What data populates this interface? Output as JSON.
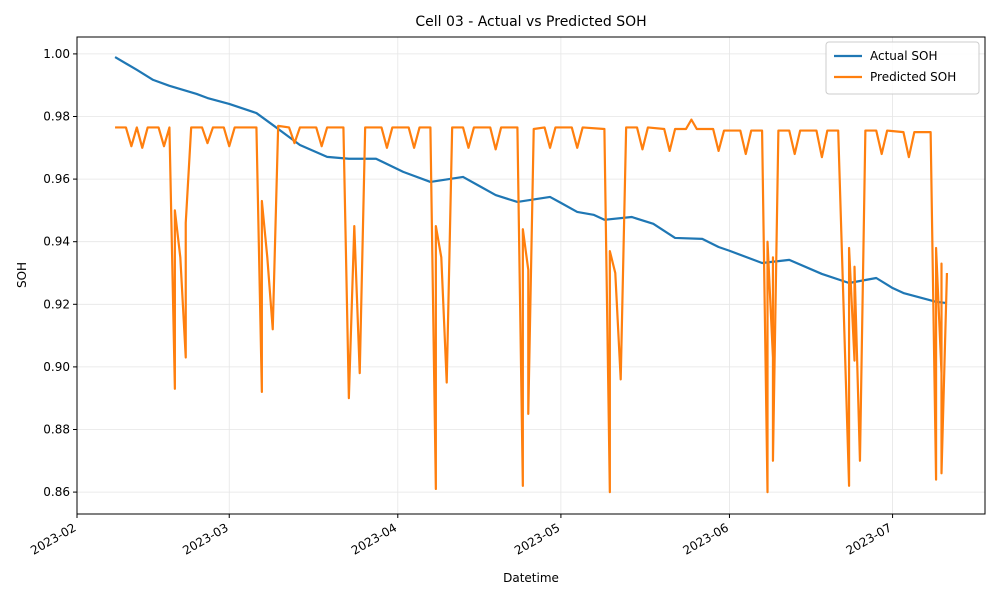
{
  "chart_data": {
    "type": "line",
    "title": "Cell 03 - Actual vs Predicted SOH",
    "xlabel": "Datetime",
    "ylabel": "SOH",
    "xlim": [
      "2023-02-01",
      "2023-07-18"
    ],
    "xticks": [
      {
        "value": "2023-02-01",
        "label": "2023-02"
      },
      {
        "value": "2023-03-01",
        "label": "2023-03"
      },
      {
        "value": "2023-04-01",
        "label": "2023-04"
      },
      {
        "value": "2023-05-01",
        "label": "2023-05"
      },
      {
        "value": "2023-06-01",
        "label": "2023-06"
      },
      {
        "value": "2023-07-01",
        "label": "2023-07"
      }
    ],
    "ylim": [
      0.853,
      1.0054
    ],
    "yticks": [
      0.86,
      0.88,
      {
        "value": 0.9,
        "label": "0.90"
      },
      0.92,
      0.94,
      0.96,
      0.98,
      {
        "value": 1,
        "label": "1.00"
      }
    ],
    "grid": true,
    "legend": "upper right",
    "series": [
      {
        "name": "Actual SOH",
        "color": "#1f77b4",
        "x": [
          "2023-02-08",
          "2023-02-12",
          "2023-02-15",
          "2023-02-18",
          "2023-02-23",
          "2023-02-25",
          "2023-03-01",
          "2023-03-06",
          "2023-03-09",
          "2023-03-14",
          "2023-03-19",
          "2023-03-23",
          "2023-03-28",
          "2023-04-02",
          "2023-04-07",
          "2023-04-13",
          "2023-04-16",
          "2023-04-19",
          "2023-04-23",
          "2023-04-29",
          "2023-05-01",
          "2023-05-04",
          "2023-05-07",
          "2023-05-09",
          "2023-05-14",
          "2023-05-18",
          "2023-05-22",
          "2023-05-27",
          "2023-05-30",
          "2023-06-01",
          "2023-06-07",
          "2023-06-12",
          "2023-06-18",
          "2023-06-23",
          "2023-06-28",
          "2023-07-01",
          "2023-07-03",
          "2023-07-09",
          "2023-07-11"
        ],
        "values": [
          0.999,
          0.9949,
          0.9917,
          0.9898,
          0.9872,
          0.9859,
          0.984,
          0.9811,
          0.9773,
          0.9709,
          0.9671,
          0.9665,
          0.9665,
          0.9623,
          0.9591,
          0.9607,
          0.9578,
          0.9549,
          0.9527,
          0.9543,
          0.9524,
          0.9495,
          0.9486,
          0.947,
          0.9479,
          0.9457,
          0.9412,
          0.9409,
          0.9383,
          0.9371,
          0.9332,
          0.9342,
          0.9297,
          0.9268,
          0.9284,
          0.9252,
          0.9236,
          0.9208,
          0.9204
        ]
      },
      {
        "name": "Predicted SOH",
        "color": "#ff7f0e",
        "x": [
          "2023-02-08",
          "2023-02-10",
          "2023-02-11",
          "2023-02-12",
          "2023-02-13",
          "2023-02-14",
          "2023-02-16",
          "2023-02-17",
          "2023-02-18",
          "2023-02-19",
          "2023-02-19",
          "2023-02-20",
          "2023-02-21",
          "2023-02-21",
          "2023-02-22",
          "2023-02-24",
          "2023-02-25",
          "2023-02-26",
          "2023-02-28",
          "2023-03-01",
          "2023-03-02",
          "2023-03-04",
          "2023-03-06",
          "2023-03-07",
          "2023-03-07",
          "2023-03-08",
          "2023-03-09",
          "2023-03-10",
          "2023-03-12",
          "2023-03-13",
          "2023-03-14",
          "2023-03-17",
          "2023-03-18",
          "2023-03-19",
          "2023-03-22",
          "2023-03-23",
          "2023-03-24",
          "2023-03-25",
          "2023-03-26",
          "2023-03-29",
          "2023-03-30",
          "2023-03-31",
          "2023-04-03",
          "2023-04-04",
          "2023-04-05",
          "2023-04-07",
          "2023-04-08",
          "2023-04-08",
          "2023-04-09",
          "2023-04-10",
          "2023-04-11",
          "2023-04-13",
          "2023-04-14",
          "2023-04-15",
          "2023-04-18",
          "2023-04-19",
          "2023-04-20",
          "2023-04-23",
          "2023-04-24",
          "2023-04-24",
          "2023-04-25",
          "2023-04-25",
          "2023-04-26",
          "2023-04-28",
          "2023-04-29",
          "2023-04-30",
          "2023-05-03",
          "2023-05-04",
          "2023-05-05",
          "2023-05-09",
          "2023-05-10",
          "2023-05-10",
          "2023-05-11",
          "2023-05-12",
          "2023-05-13",
          "2023-05-15",
          "2023-05-16",
          "2023-05-17",
          "2023-05-20",
          "2023-05-21",
          "2023-05-22",
          "2023-05-24",
          "2023-05-25",
          "2023-05-26",
          "2023-05-29",
          "2023-05-30",
          "2023-05-31",
          "2023-06-03",
          "2023-06-04",
          "2023-06-05",
          "2023-06-07",
          "2023-06-08",
          "2023-06-08",
          "2023-06-09",
          "2023-06-09",
          "2023-06-09",
          "2023-06-10",
          "2023-06-12",
          "2023-06-13",
          "2023-06-14",
          "2023-06-17",
          "2023-06-18",
          "2023-06-19",
          "2023-06-21",
          "2023-06-23",
          "2023-06-23",
          "2023-06-24",
          "2023-06-24",
          "2023-06-25",
          "2023-06-26",
          "2023-06-28",
          "2023-06-29",
          "2023-06-30",
          "2023-07-03",
          "2023-07-04",
          "2023-07-05",
          "2023-07-08",
          "2023-07-09",
          "2023-07-09",
          "2023-07-10",
          "2023-07-10",
          "2023-07-10",
          "2023-07-11"
        ],
        "values": [
          0.9765,
          0.9765,
          0.9705,
          0.9765,
          0.97,
          0.9765,
          0.9765,
          0.9705,
          0.9765,
          0.893,
          0.95,
          0.935,
          0.903,
          0.946,
          0.9765,
          0.9765,
          0.9715,
          0.9765,
          0.9765,
          0.9705,
          0.9765,
          0.9765,
          0.9765,
          0.892,
          0.953,
          0.935,
          0.912,
          0.977,
          0.9765,
          0.9715,
          0.9765,
          0.9765,
          0.9705,
          0.9765,
          0.9765,
          0.89,
          0.945,
          0.898,
          0.9765,
          0.9765,
          0.97,
          0.9765,
          0.9765,
          0.97,
          0.9765,
          0.9765,
          0.861,
          0.945,
          0.935,
          0.895,
          0.9765,
          0.9765,
          0.97,
          0.9765,
          0.9765,
          0.9695,
          0.9765,
          0.9765,
          0.862,
          0.944,
          0.931,
          0.885,
          0.976,
          0.9765,
          0.97,
          0.9765,
          0.9765,
          0.97,
          0.9765,
          0.976,
          0.86,
          0.937,
          0.93,
          0.896,
          0.9765,
          0.9765,
          0.9695,
          0.9765,
          0.976,
          0.969,
          0.976,
          0.976,
          0.979,
          0.976,
          0.976,
          0.969,
          0.9755,
          0.9755,
          0.968,
          0.9755,
          0.9755,
          0.86,
          0.94,
          0.903,
          0.935,
          0.87,
          0.9755,
          0.9755,
          0.968,
          0.9755,
          0.9755,
          0.967,
          0.9755,
          0.9755,
          0.862,
          0.938,
          0.902,
          0.932,
          0.87,
          0.9755,
          0.9755,
          0.968,
          0.9755,
          0.975,
          0.967,
          0.975,
          0.975,
          0.864,
          0.938,
          0.898,
          0.933,
          0.866,
          0.93
        ]
      }
    ]
  }
}
